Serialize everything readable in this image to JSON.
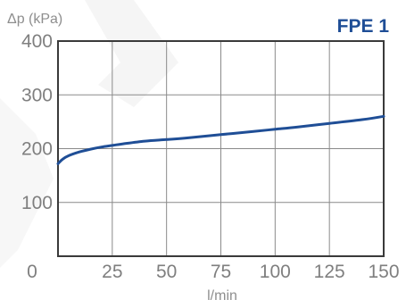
{
  "chart_data": {
    "type": "line",
    "title": "FPE 1",
    "ylabel": "Δp (kPa)",
    "xlabel": "l/min",
    "xlim": [
      0,
      150
    ],
    "ylim": [
      0,
      400
    ],
    "x_ticks": [
      "0",
      "25",
      "50",
      "75",
      "100",
      "125",
      "150"
    ],
    "y_ticks": [
      "100",
      "200",
      "300",
      "400"
    ],
    "grid": true,
    "series": [
      {
        "name": "FPE 1",
        "color": "#1f4e96",
        "x": [
          0,
          2,
          5,
          10,
          15,
          20,
          25,
          30,
          40,
          50,
          60,
          75,
          90,
          100,
          110,
          125,
          140,
          150
        ],
        "y": [
          172,
          180,
          187,
          194,
          199,
          203,
          206,
          209,
          214,
          217,
          220,
          226,
          232,
          236,
          240,
          247,
          254,
          260
        ]
      }
    ]
  }
}
